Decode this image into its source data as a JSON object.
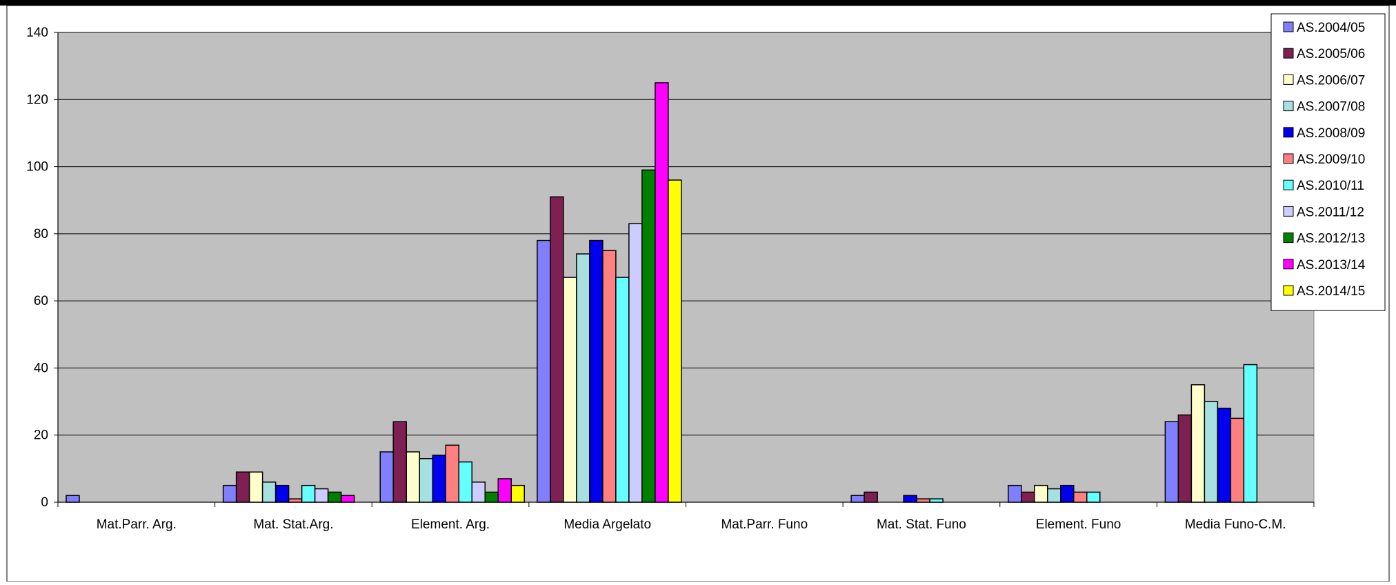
{
  "chart_data": {
    "type": "bar",
    "title": "",
    "xlabel": "",
    "ylabel": "",
    "ylim": [
      0,
      140
    ],
    "y_ticks": [
      0,
      20,
      40,
      60,
      80,
      100,
      120,
      140
    ],
    "grid": true,
    "legend_position": "top-right",
    "categories": [
      "Mat.Parr. Arg.",
      "Mat. Stat.Arg.",
      "Element. Arg.",
      "Media Argelato",
      "Mat.Parr. Funo",
      "Mat. Stat. Funo",
      "Element. Funo",
      "Media  Funo-C.M."
    ],
    "series": [
      {
        "name": "AS.2004/05",
        "color": "#8080ff",
        "values": [
          2,
          5,
          15,
          78,
          0,
          2,
          5,
          24
        ]
      },
      {
        "name": "AS.2005/06",
        "color": "#7f2052",
        "values": [
          0,
          9,
          24,
          91,
          0,
          3,
          3,
          26
        ]
      },
      {
        "name": "AS.2006/07",
        "color": "#ffffcc",
        "values": [
          0,
          9,
          15,
          67,
          0,
          0,
          5,
          35
        ]
      },
      {
        "name": "AS.2007/08",
        "color": "#a6e0e0",
        "values": [
          0,
          6,
          13,
          74,
          0,
          0,
          4,
          30
        ]
      },
      {
        "name": "AS.2008/09",
        "color": "#0000ee",
        "values": [
          0,
          5,
          14,
          78,
          0,
          2,
          5,
          28
        ]
      },
      {
        "name": "AS.2009/10",
        "color": "#ff8080",
        "values": [
          0,
          1,
          17,
          75,
          0,
          1,
          3,
          25
        ]
      },
      {
        "name": "AS.2010/11",
        "color": "#66ffff",
        "values": [
          0,
          5,
          12,
          67,
          0,
          1,
          3,
          41
        ]
      },
      {
        "name": "AS.2011/12",
        "color": "#ccccff",
        "values": [
          0,
          4,
          6,
          83,
          0,
          0,
          0,
          0
        ]
      },
      {
        "name": "AS.2012/13",
        "color": "#008000",
        "values": [
          0,
          3,
          3,
          99,
          0,
          0,
          0,
          0
        ]
      },
      {
        "name": "AS.2013/14",
        "color": "#ff00ff",
        "values": [
          0,
          2,
          7,
          125,
          0,
          0,
          0,
          0
        ]
      },
      {
        "name": "AS.2014/15",
        "color": "#ffff00",
        "values": [
          0,
          0,
          5,
          96,
          0,
          0,
          0,
          0
        ]
      }
    ]
  }
}
